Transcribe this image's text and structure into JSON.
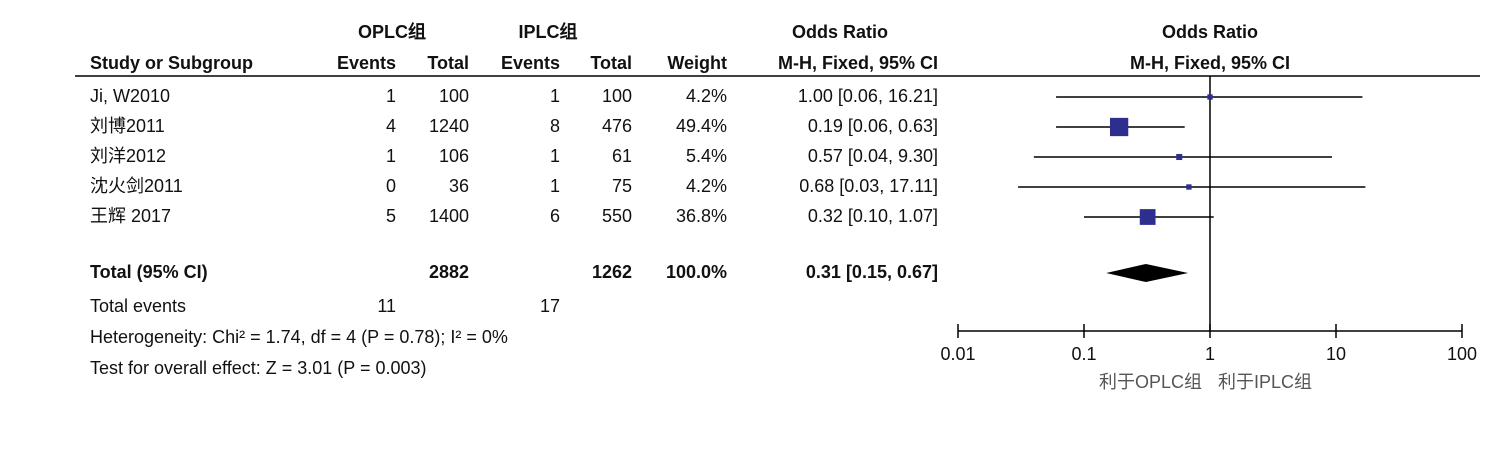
{
  "chart_data": {
    "type": "forest",
    "group_headers": [
      "OPLC组",
      "IPLC组"
    ],
    "columns": [
      "Study or Subgroup",
      "Events",
      "Total",
      "Events",
      "Total",
      "Weight"
    ],
    "or_header": "Odds Ratio",
    "or_subheader": "M-H, Fixed, 95% CI",
    "plot_header": "Odds Ratio",
    "plot_subheader": "M-H, Fixed, 95% CI",
    "categories": [
      "Ji, W2010",
      "刘博2011",
      "刘洋2012",
      "沈火剑2011",
      "王辉 2017"
    ],
    "events1": [
      1,
      4,
      1,
      0,
      5
    ],
    "total1": [
      100,
      1240,
      106,
      36,
      1400
    ],
    "events2": [
      1,
      8,
      1,
      1,
      6
    ],
    "total2": [
      100,
      476,
      61,
      75,
      550
    ],
    "weights": [
      4.2,
      49.4,
      5.4,
      4.2,
      36.8
    ],
    "weight_labels": [
      "4.2%",
      "49.4%",
      "5.4%",
      "4.2%",
      "36.8%"
    ],
    "values": [
      1.0,
      0.19,
      0.57,
      0.68,
      0.32
    ],
    "lower": [
      0.06,
      0.06,
      0.04,
      0.03,
      0.1
    ],
    "upper": [
      16.21,
      0.63,
      9.3,
      17.11,
      1.07
    ],
    "value_labels": [
      "1.00 [0.06, 16.21]",
      "0.19 [0.06, 0.63]",
      "0.57 [0.04, 9.30]",
      "0.68 [0.03, 17.11]",
      "0.32 [0.10, 1.07]"
    ],
    "color": "#2e2e8f",
    "total": {
      "label": "Total (95% CI)",
      "total1": 2882,
      "total2": 1262,
      "weight": 100,
      "weight_label": "100.0%",
      "value": 0.31,
      "lower": 0.15,
      "upper": 0.67,
      "value_label": "0.31 [0.15, 0.67]",
      "color": "#000000"
    },
    "total_events": {
      "label": "Total events",
      "events1": 11,
      "events2": 17
    },
    "heterogeneity": "Heterogeneity: Chi² = 1.74, df = 4 (P = 0.78); I² = 0%",
    "overall_effect": "Test for overall effect: Z = 3.01 (P = 0.003)",
    "log_scale": true,
    "xlim": [
      0.01,
      100
    ],
    "xticks": [
      0.01,
      0.1,
      1,
      10,
      100
    ],
    "favours": [
      "利于OPLC组",
      "利于IPLC组"
    ]
  }
}
